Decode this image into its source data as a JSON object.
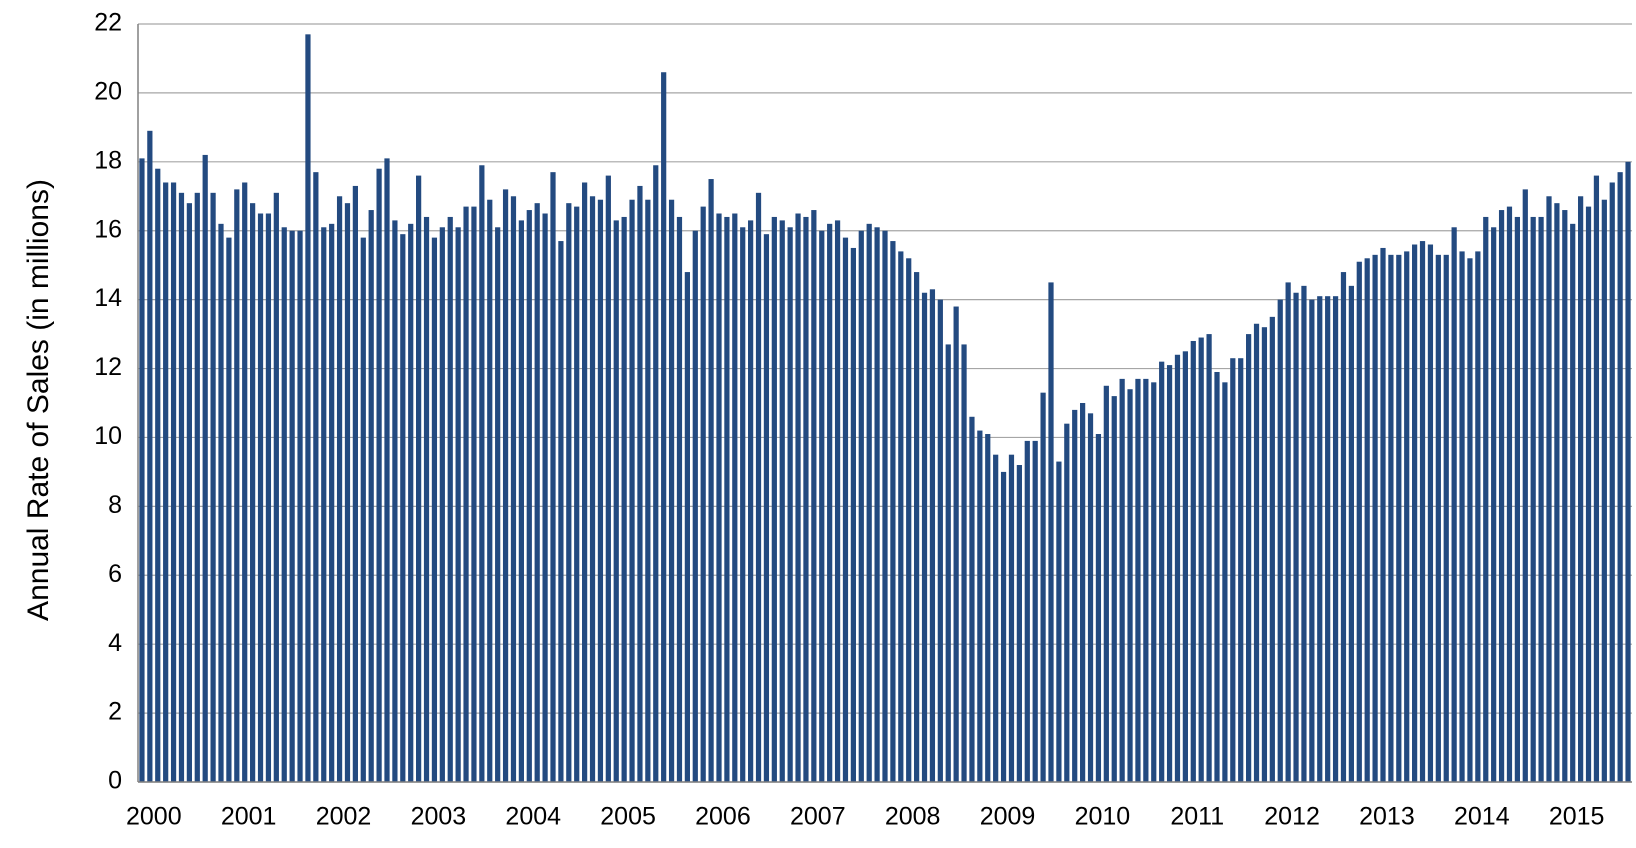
{
  "chart_data": {
    "type": "bar",
    "y_label": "Annual Rate of Sales (in millions)",
    "color": "#234a80",
    "ylim": [
      0,
      22
    ],
    "yticks": [
      0,
      2,
      4,
      6,
      8,
      10,
      12,
      14,
      16,
      18,
      20,
      22
    ],
    "grid": true,
    "categories": [
      "2000",
      null,
      null,
      null,
      null,
      null,
      null,
      null,
      null,
      null,
      null,
      null,
      "2001",
      null,
      null,
      null,
      null,
      null,
      null,
      null,
      null,
      null,
      null,
      null,
      "2002",
      null,
      null,
      null,
      null,
      null,
      null,
      null,
      null,
      null,
      null,
      null,
      "2003",
      null,
      null,
      null,
      null,
      null,
      null,
      null,
      null,
      null,
      null,
      null,
      "2004",
      null,
      null,
      null,
      null,
      null,
      null,
      null,
      null,
      null,
      null,
      null,
      "2005",
      null,
      null,
      null,
      null,
      null,
      null,
      null,
      null,
      null,
      null,
      null,
      "2006",
      null,
      null,
      null,
      null,
      null,
      null,
      null,
      null,
      null,
      null,
      null,
      "2007",
      null,
      null,
      null,
      null,
      null,
      null,
      null,
      null,
      null,
      null,
      null,
      "2008",
      null,
      null,
      null,
      null,
      null,
      null,
      null,
      null,
      null,
      null,
      null,
      "2009",
      null,
      null,
      null,
      null,
      null,
      null,
      null,
      null,
      null,
      null,
      null,
      "2010",
      null,
      null,
      null,
      null,
      null,
      null,
      null,
      null,
      null,
      null,
      null,
      "2011",
      null,
      null,
      null,
      null,
      null,
      null,
      null,
      null,
      null,
      null,
      null,
      "2012",
      null,
      null,
      null,
      null,
      null,
      null,
      null,
      null,
      null,
      null,
      null,
      "2013",
      null,
      null,
      null,
      null,
      null,
      null,
      null,
      null,
      null,
      null,
      null,
      "2014",
      null,
      null,
      null,
      null,
      null,
      null,
      null,
      null,
      null,
      null,
      null,
      "2015",
      null,
      null,
      null,
      null,
      null,
      null,
      null,
      null
    ],
    "values": [
      18.1,
      18.9,
      17.8,
      17.4,
      17.4,
      17.1,
      16.8,
      17.1,
      18.2,
      17.1,
      16.2,
      15.8,
      17.2,
      17.4,
      16.8,
      16.5,
      16.5,
      17.1,
      16.1,
      16.0,
      16.0,
      21.7,
      17.7,
      16.1,
      16.2,
      17.0,
      16.8,
      17.3,
      15.8,
      16.6,
      17.8,
      18.1,
      16.3,
      15.9,
      16.2,
      17.6,
      16.4,
      15.8,
      16.1,
      16.4,
      16.1,
      16.7,
      16.7,
      17.9,
      16.9,
      16.1,
      17.2,
      17.0,
      16.3,
      16.6,
      16.8,
      16.5,
      17.7,
      15.7,
      16.8,
      16.7,
      17.4,
      17.0,
      16.9,
      17.6,
      16.3,
      16.4,
      16.9,
      17.3,
      16.9,
      17.9,
      20.6,
      16.9,
      16.4,
      14.8,
      16.0,
      16.7,
      17.5,
      16.5,
      16.4,
      16.5,
      16.1,
      16.3,
      17.1,
      15.9,
      16.4,
      16.3,
      16.1,
      16.5,
      16.4,
      16.6,
      16.0,
      16.2,
      16.3,
      15.8,
      15.5,
      16.0,
      16.2,
      16.1,
      16.0,
      15.7,
      15.4,
      15.2,
      14.8,
      14.2,
      14.3,
      14.0,
      12.7,
      13.8,
      12.7,
      10.6,
      10.2,
      10.1,
      9.5,
      9.0,
      9.5,
      9.2,
      9.9,
      9.9,
      11.3,
      14.5,
      9.3,
      10.4,
      10.8,
      11.0,
      10.7,
      10.1,
      11.5,
      11.2,
      11.7,
      11.4,
      11.7,
      11.7,
      11.6,
      12.2,
      12.1,
      12.4,
      12.5,
      12.8,
      12.9,
      13.0,
      11.9,
      11.6,
      12.3,
      12.3,
      13.0,
      13.3,
      13.2,
      13.5,
      14.0,
      14.5,
      14.2,
      14.4,
      14.0,
      14.1,
      14.1,
      14.1,
      14.8,
      14.4,
      15.1,
      15.2,
      15.3,
      15.5,
      15.3,
      15.3,
      15.4,
      15.6,
      15.7,
      15.6,
      15.3,
      15.3,
      16.1,
      15.4,
      15.2,
      15.4,
      16.4,
      16.1,
      16.6,
      16.7,
      16.4,
      17.2,
      16.4,
      16.4,
      17.0,
      16.8,
      16.6,
      16.2,
      17.0,
      16.7,
      17.6,
      16.9,
      17.4,
      17.7,
      18.0
    ]
  }
}
